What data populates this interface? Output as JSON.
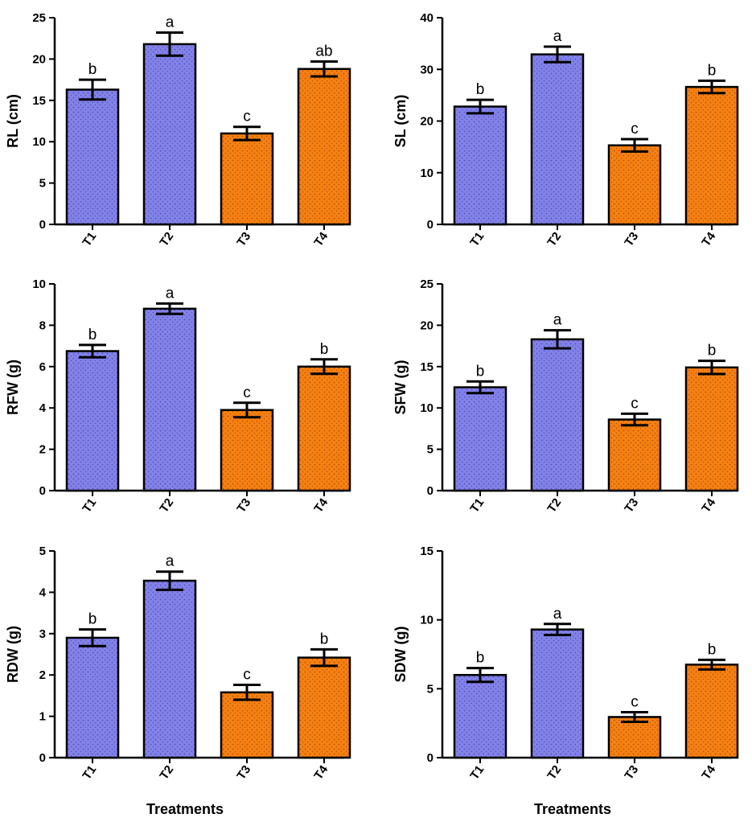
{
  "colors": {
    "group_a": "#8181e8",
    "group_b": "#f57f12",
    "dots_a": "#4a4aa8",
    "dots_b": "#a14d05"
  },
  "chart_data": [
    {
      "type": "bar",
      "ylabel": "RL (cm)",
      "xlabel": "",
      "categories": [
        "T1",
        "T2",
        "T3",
        "T4"
      ],
      "values": [
        16.3,
        21.8,
        11.0,
        18.8
      ],
      "errors": [
        1.2,
        1.4,
        0.8,
        0.9
      ],
      "letters": [
        "b",
        "a",
        "c",
        "ab"
      ],
      "ylim": [
        0,
        25
      ],
      "yticks": [
        0,
        5,
        10,
        15,
        20,
        25
      ]
    },
    {
      "type": "bar",
      "ylabel": "SL (cm)",
      "xlabel": "",
      "categories": [
        "T1",
        "T2",
        "T3",
        "T4"
      ],
      "values": [
        22.8,
        32.9,
        15.3,
        26.6
      ],
      "errors": [
        1.3,
        1.5,
        1.2,
        1.2
      ],
      "letters": [
        "b",
        "a",
        "c",
        "b"
      ],
      "ylim": [
        0,
        40
      ],
      "yticks": [
        0,
        10,
        20,
        30,
        40
      ]
    },
    {
      "type": "bar",
      "ylabel": "RFW (g)",
      "xlabel": "",
      "categories": [
        "T1",
        "T2",
        "T3",
        "T4"
      ],
      "values": [
        6.75,
        8.8,
        3.9,
        6.0
      ],
      "errors": [
        0.3,
        0.25,
        0.35,
        0.35
      ],
      "letters": [
        "b",
        "a",
        "c",
        "b"
      ],
      "ylim": [
        0,
        10
      ],
      "yticks": [
        0,
        2,
        4,
        6,
        8,
        10
      ]
    },
    {
      "type": "bar",
      "ylabel": "SFW (g)",
      "xlabel": "",
      "categories": [
        "T1",
        "T2",
        "T3",
        "T4"
      ],
      "values": [
        12.5,
        18.3,
        8.6,
        14.9
      ],
      "errors": [
        0.7,
        1.1,
        0.7,
        0.8
      ],
      "letters": [
        "b",
        "a",
        "c",
        "b"
      ],
      "ylim": [
        0,
        25
      ],
      "yticks": [
        0,
        5,
        10,
        15,
        20,
        25
      ]
    },
    {
      "type": "bar",
      "ylabel": "RDW (g)",
      "xlabel": "Treatments",
      "categories": [
        "T1",
        "T2",
        "T3",
        "T4"
      ],
      "values": [
        2.9,
        4.28,
        1.58,
        2.42
      ],
      "errors": [
        0.2,
        0.22,
        0.18,
        0.2
      ],
      "letters": [
        "b",
        "a",
        "c",
        "b"
      ],
      "ylim": [
        0,
        5
      ],
      "yticks": [
        0,
        1,
        2,
        3,
        4,
        5
      ]
    },
    {
      "type": "bar",
      "ylabel": "SDW (g)",
      "xlabel": "Treatments",
      "categories": [
        "T1",
        "T2",
        "T3",
        "T4"
      ],
      "values": [
        6.0,
        9.3,
        2.95,
        6.75
      ],
      "errors": [
        0.5,
        0.4,
        0.35,
        0.35
      ],
      "letters": [
        "b",
        "a",
        "c",
        "b"
      ],
      "ylim": [
        0,
        15
      ],
      "yticks": [
        0,
        5,
        10,
        15
      ]
    }
  ]
}
